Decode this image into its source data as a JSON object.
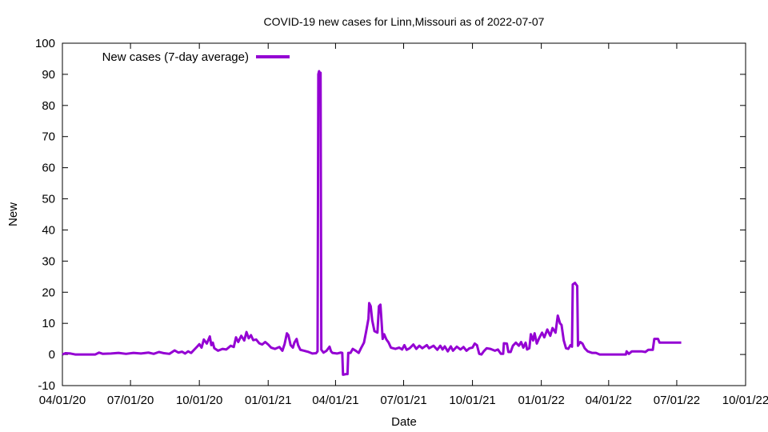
{
  "chart_data": {
    "type": "line",
    "title": "COVID-19 new cases for Linn,Missouri as of 2022-07-07",
    "xlabel": "Date",
    "ylabel": "New",
    "xlim": [
      "2020-04-01",
      "2022-10-01"
    ],
    "ylim": [
      -10,
      100
    ],
    "x_ticks": [
      "04/01/20",
      "07/01/20",
      "10/01/20",
      "01/01/21",
      "04/01/21",
      "07/01/21",
      "10/01/21",
      "01/01/22",
      "04/01/22",
      "07/01/22",
      "10/01/22"
    ],
    "y_ticks": [
      "-10",
      "0",
      "10",
      "20",
      "30",
      "40",
      "50",
      "60",
      "70",
      "80",
      "90",
      "100"
    ],
    "grid": false,
    "legend_position": "top-left",
    "series": [
      {
        "name": "New cases (7-day average)",
        "color": "#9400d3",
        "points": [
          [
            "2020-04-01",
            0
          ],
          [
            "2020-04-05",
            0.4
          ],
          [
            "2020-04-12",
            0.3
          ],
          [
            "2020-04-18",
            0
          ],
          [
            "2020-05-01",
            0
          ],
          [
            "2020-05-15",
            0
          ],
          [
            "2020-05-20",
            0.6
          ],
          [
            "2020-05-25",
            0.2
          ],
          [
            "2020-06-05",
            0.3
          ],
          [
            "2020-06-15",
            0.5
          ],
          [
            "2020-06-25",
            0.2
          ],
          [
            "2020-07-05",
            0.5
          ],
          [
            "2020-07-15",
            0.3
          ],
          [
            "2020-07-25",
            0.6
          ],
          [
            "2020-08-01",
            0.2
          ],
          [
            "2020-08-08",
            0.8
          ],
          [
            "2020-08-15",
            0.4
          ],
          [
            "2020-08-22",
            0.2
          ],
          [
            "2020-08-29",
            1.3
          ],
          [
            "2020-09-03",
            0.6
          ],
          [
            "2020-09-08",
            0.9
          ],
          [
            "2020-09-12",
            0.3
          ],
          [
            "2020-09-16",
            1.0
          ],
          [
            "2020-09-20",
            0.5
          ],
          [
            "2020-09-24",
            1.5
          ],
          [
            "2020-09-28",
            2.5
          ],
          [
            "2020-10-01",
            3.3
          ],
          [
            "2020-10-04",
            2.2
          ],
          [
            "2020-10-07",
            4.8
          ],
          [
            "2020-10-11",
            3.5
          ],
          [
            "2020-10-15",
            5.8
          ],
          [
            "2020-10-17",
            3.0
          ],
          [
            "2020-10-19",
            3.8
          ],
          [
            "2020-10-21",
            2.0
          ],
          [
            "2020-10-26",
            1.2
          ],
          [
            "2020-11-01",
            1.8
          ],
          [
            "2020-11-06",
            1.6
          ],
          [
            "2020-11-12",
            2.8
          ],
          [
            "2020-11-16",
            2.4
          ],
          [
            "2020-11-19",
            5.5
          ],
          [
            "2020-11-22",
            4.0
          ],
          [
            "2020-11-26",
            6.0
          ],
          [
            "2020-11-30",
            4.5
          ],
          [
            "2020-12-03",
            7.2
          ],
          [
            "2020-12-06",
            5.2
          ],
          [
            "2020-12-09",
            6.2
          ],
          [
            "2020-12-12",
            4.6
          ],
          [
            "2020-12-16",
            4.8
          ],
          [
            "2020-12-20",
            3.6
          ],
          [
            "2020-12-24",
            3.2
          ],
          [
            "2020-12-28",
            4.0
          ],
          [
            "2021-01-01",
            3.2
          ],
          [
            "2021-01-05",
            2.2
          ],
          [
            "2021-01-10",
            1.8
          ],
          [
            "2021-01-16",
            2.4
          ],
          [
            "2021-01-20",
            1.2
          ],
          [
            "2021-01-23",
            3.4
          ],
          [
            "2021-01-26",
            6.8
          ],
          [
            "2021-01-28",
            6.2
          ],
          [
            "2021-01-31",
            3.0
          ],
          [
            "2021-02-03",
            2.2
          ],
          [
            "2021-02-05",
            3.8
          ],
          [
            "2021-02-08",
            5.0
          ],
          [
            "2021-02-10",
            3.0
          ],
          [
            "2021-02-13",
            1.5
          ],
          [
            "2021-02-18",
            1.2
          ],
          [
            "2021-02-24",
            0.8
          ],
          [
            "2021-03-01",
            0.3
          ],
          [
            "2021-03-06",
            0.4
          ],
          [
            "2021-03-08",
            1.0
          ],
          [
            "2021-03-09",
            90
          ],
          [
            "2021-03-10",
            91
          ],
          [
            "2021-03-11",
            90.5
          ],
          [
            "2021-03-12",
            90.5
          ],
          [
            "2021-03-13",
            1.5
          ],
          [
            "2021-03-16",
            0.6
          ],
          [
            "2021-03-20",
            1.2
          ],
          [
            "2021-03-24",
            2.5
          ],
          [
            "2021-03-26",
            1.0
          ],
          [
            "2021-03-28",
            0.5
          ],
          [
            "2021-04-03",
            0.3
          ],
          [
            "2021-04-08",
            0.6
          ],
          [
            "2021-04-10",
            0.5
          ],
          [
            "2021-04-11",
            -6.5
          ],
          [
            "2021-04-15",
            -6.3
          ],
          [
            "2021-04-17",
            -6.3
          ],
          [
            "2021-04-18",
            0.5
          ],
          [
            "2021-04-21",
            0.5
          ],
          [
            "2021-04-24",
            1.8
          ],
          [
            "2021-04-28",
            1.2
          ],
          [
            "2021-05-02",
            0.5
          ],
          [
            "2021-05-05",
            2.0
          ],
          [
            "2021-05-09",
            3.8
          ],
          [
            "2021-05-12",
            7.5
          ],
          [
            "2021-05-15",
            11.5
          ],
          [
            "2021-05-16",
            16.5
          ],
          [
            "2021-05-18",
            15.5
          ],
          [
            "2021-05-20",
            11.0
          ],
          [
            "2021-05-23",
            7.5
          ],
          [
            "2021-05-27",
            7.0
          ],
          [
            "2021-05-29",
            15.5
          ],
          [
            "2021-05-31",
            16.0
          ],
          [
            "2021-06-01",
            12.5
          ],
          [
            "2021-06-03",
            5.0
          ],
          [
            "2021-06-05",
            6.5
          ],
          [
            "2021-06-08",
            4.8
          ],
          [
            "2021-06-11",
            3.8
          ],
          [
            "2021-06-14",
            2.2
          ],
          [
            "2021-06-20",
            1.8
          ],
          [
            "2021-06-25",
            2.2
          ],
          [
            "2021-06-29",
            1.6
          ],
          [
            "2021-07-02",
            3.0
          ],
          [
            "2021-07-05",
            1.5
          ],
          [
            "2021-07-09",
            2.0
          ],
          [
            "2021-07-14",
            3.2
          ],
          [
            "2021-07-18",
            1.8
          ],
          [
            "2021-07-22",
            2.8
          ],
          [
            "2021-07-26",
            2.0
          ],
          [
            "2021-08-01",
            3.0
          ],
          [
            "2021-08-04",
            2.0
          ],
          [
            "2021-08-10",
            2.8
          ],
          [
            "2021-08-15",
            1.5
          ],
          [
            "2021-08-19",
            2.8
          ],
          [
            "2021-08-22",
            1.6
          ],
          [
            "2021-08-25",
            2.6
          ],
          [
            "2021-08-29",
            1.0
          ],
          [
            "2021-09-02",
            2.6
          ],
          [
            "2021-09-05",
            1.2
          ],
          [
            "2021-09-10",
            2.5
          ],
          [
            "2021-09-15",
            1.6
          ],
          [
            "2021-09-19",
            2.4
          ],
          [
            "2021-09-23",
            1.2
          ],
          [
            "2021-09-27",
            2.0
          ],
          [
            "2021-10-01",
            2.2
          ],
          [
            "2021-10-04",
            3.5
          ],
          [
            "2021-10-07",
            3.0
          ],
          [
            "2021-10-10",
            0.2
          ],
          [
            "2021-10-13",
            0.0
          ],
          [
            "2021-10-16",
            1.0
          ],
          [
            "2021-10-20",
            2.0
          ],
          [
            "2021-10-25",
            1.8
          ],
          [
            "2021-10-31",
            1.2
          ],
          [
            "2021-11-04",
            1.6
          ],
          [
            "2021-11-08",
            0.2
          ],
          [
            "2021-11-11",
            0.2
          ],
          [
            "2021-11-12",
            3.6
          ],
          [
            "2021-11-16",
            3.5
          ],
          [
            "2021-11-18",
            0.8
          ],
          [
            "2021-11-21",
            0.8
          ],
          [
            "2021-11-24",
            2.8
          ],
          [
            "2021-11-28",
            3.8
          ],
          [
            "2021-12-02",
            2.8
          ],
          [
            "2021-12-05",
            4.0
          ],
          [
            "2021-12-08",
            2.2
          ],
          [
            "2021-12-11",
            3.8
          ],
          [
            "2021-12-13",
            1.6
          ],
          [
            "2021-12-16",
            2.0
          ],
          [
            "2021-12-18",
            6.5
          ],
          [
            "2021-12-21",
            4.5
          ],
          [
            "2021-12-23",
            6.8
          ],
          [
            "2021-12-26",
            3.5
          ],
          [
            "2021-12-29",
            5.2
          ],
          [
            "2022-01-02",
            7.0
          ],
          [
            "2022-01-05",
            5.5
          ],
          [
            "2022-01-09",
            8.0
          ],
          [
            "2022-01-13",
            6.0
          ],
          [
            "2022-01-16",
            8.5
          ],
          [
            "2022-01-20",
            7.0
          ],
          [
            "2022-01-23",
            12.5
          ],
          [
            "2022-01-26",
            10.0
          ],
          [
            "2022-01-28",
            9.5
          ],
          [
            "2022-01-31",
            4.5
          ],
          [
            "2022-02-03",
            2.0
          ],
          [
            "2022-02-06",
            1.8
          ],
          [
            "2022-02-09",
            3.0
          ],
          [
            "2022-02-11",
            2.5
          ],
          [
            "2022-02-12",
            22.5
          ],
          [
            "2022-02-15",
            23.0
          ],
          [
            "2022-02-18",
            22.0
          ],
          [
            "2022-02-19",
            2.8
          ],
          [
            "2022-02-22",
            4.0
          ],
          [
            "2022-02-25",
            3.5
          ],
          [
            "2022-02-28",
            2.0
          ],
          [
            "2022-03-04",
            1.0
          ],
          [
            "2022-03-10",
            0.5
          ],
          [
            "2022-03-15",
            0.5
          ],
          [
            "2022-03-20",
            0.0
          ],
          [
            "2022-04-01",
            0.0
          ],
          [
            "2022-04-10",
            0.0
          ],
          [
            "2022-04-20",
            0.0
          ],
          [
            "2022-04-24",
            0.0
          ],
          [
            "2022-04-25",
            1.0
          ],
          [
            "2022-04-28",
            0.2
          ],
          [
            "2022-05-02",
            1.0
          ],
          [
            "2022-05-08",
            1.0
          ],
          [
            "2022-05-15",
            1.0
          ],
          [
            "2022-05-20",
            0.8
          ],
          [
            "2022-05-24",
            1.5
          ],
          [
            "2022-05-30",
            1.5
          ],
          [
            "2022-06-01",
            5.0
          ],
          [
            "2022-06-06",
            5.0
          ],
          [
            "2022-06-08",
            3.8
          ],
          [
            "2022-06-15",
            3.8
          ],
          [
            "2022-06-22",
            3.8
          ],
          [
            "2022-06-29",
            3.8
          ],
          [
            "2022-07-07",
            3.8
          ]
        ]
      }
    ]
  }
}
